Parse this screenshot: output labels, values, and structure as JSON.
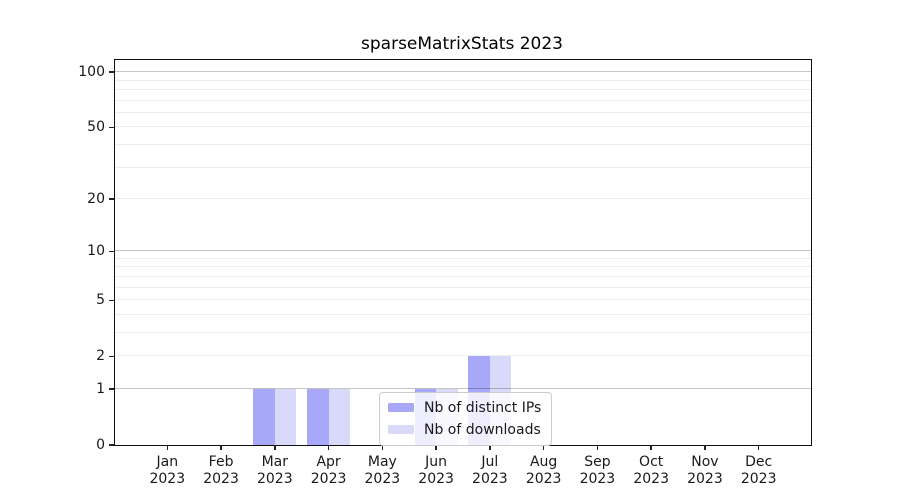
{
  "title": "sparseMatrixStats 2023",
  "chart_data": {
    "type": "bar",
    "title": "sparseMatrixStats 2023",
    "categories": [
      "Jan 2023",
      "Feb 2023",
      "Mar 2023",
      "Apr 2023",
      "May 2023",
      "Jun 2023",
      "Jul 2023",
      "Aug 2023",
      "Sep 2023",
      "Oct 2023",
      "Nov 2023",
      "Dec 2023"
    ],
    "series": [
      {
        "name": "Nb of distinct IPs",
        "color": "#a8a8f8",
        "values": [
          0,
          0,
          1,
          1,
          0,
          1,
          2,
          0,
          0,
          0,
          0,
          0
        ]
      },
      {
        "name": "Nb of downloads",
        "color": "#d9d9f9",
        "values": [
          0,
          0,
          1,
          1,
          0,
          1,
          2,
          0,
          0,
          0,
          0,
          0
        ]
      }
    ],
    "xlabel": "",
    "ylabel": "",
    "yscale": "log10(1+x)",
    "ylim": [
      0,
      117
    ],
    "yticks": [
      0,
      1,
      2,
      5,
      10,
      20,
      50,
      100
    ],
    "grid": {
      "major_values": [
        1,
        10,
        100
      ],
      "minor_values": [
        2,
        3,
        4,
        5,
        6,
        7,
        8,
        9,
        20,
        30,
        40,
        50,
        60,
        70,
        80,
        90
      ]
    },
    "legend_position": "lower center inside",
    "background": "#ffffff"
  }
}
